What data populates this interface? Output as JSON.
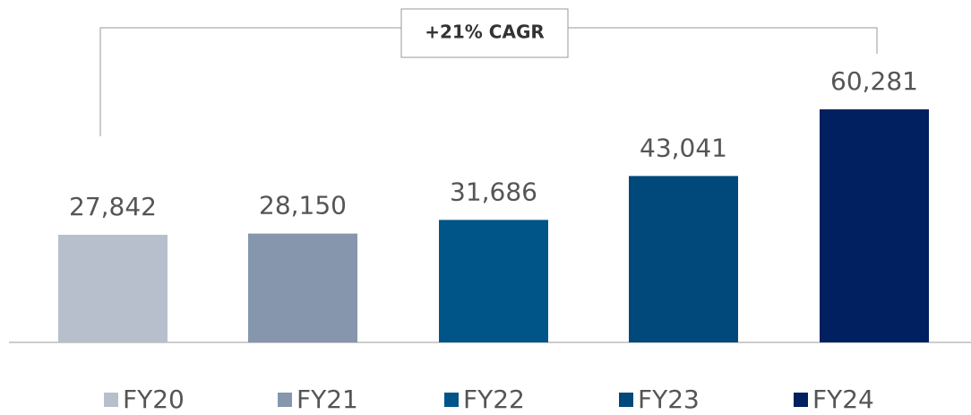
{
  "chart_data": {
    "type": "bar",
    "annotation": "+21% CAGR",
    "categories": [
      "FY20",
      "FY21",
      "FY22",
      "FY23",
      "FY24"
    ],
    "values": [
      27842,
      28150,
      31686,
      43041,
      60281
    ],
    "value_labels": [
      "27,842",
      "28,150",
      "31,686",
      "43,041",
      "60,281"
    ],
    "colors": [
      "#b7bfcc",
      "#8596ad",
      "#005588",
      "#00497a",
      "#002060"
    ],
    "legend": "bottom"
  }
}
